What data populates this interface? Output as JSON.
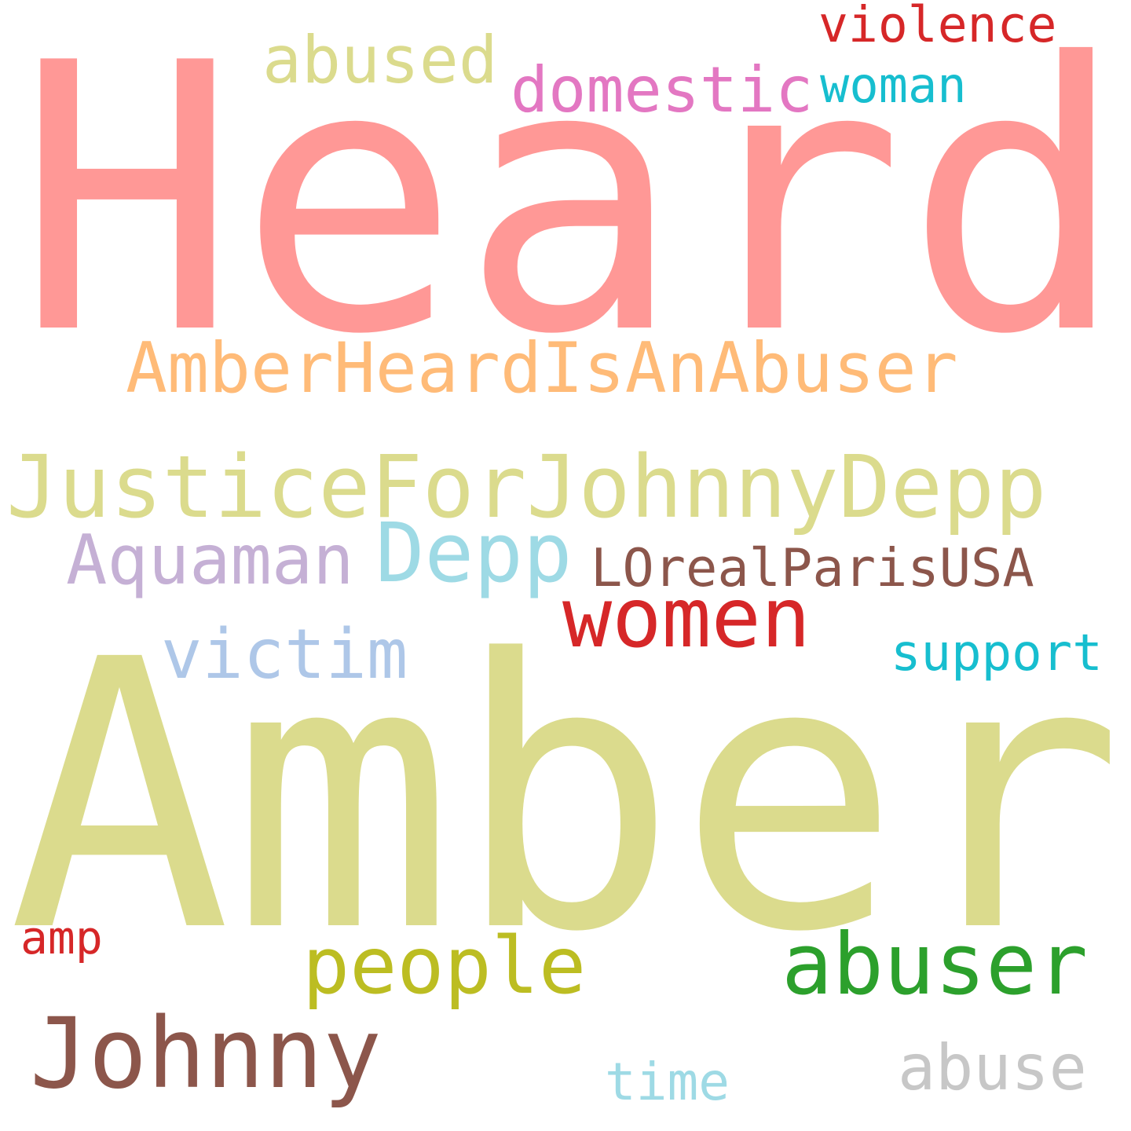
{
  "words": [
    {
      "key": "heard",
      "text": "Heard",
      "color": "#ff9896"
    },
    {
      "key": "amber",
      "text": "Amber",
      "color": "#dbdb8d"
    },
    {
      "key": "amberheard_is_an_abuser",
      "text": "AmberHeardIsAnAbuser",
      "color": "#ffbb78"
    },
    {
      "key": "justice",
      "text": "JusticeForJohnnyDepp",
      "color": "#dbdb8d"
    },
    {
      "key": "depp",
      "text": "Depp",
      "color": "#9edae5"
    },
    {
      "key": "aquaman",
      "text": "Aquaman",
      "color": "#c5b0d5"
    },
    {
      "key": "loreal",
      "text": "LOrealParisUSA",
      "color": "#8c564b"
    },
    {
      "key": "women",
      "text": "women",
      "color": "#d62728"
    },
    {
      "key": "victim",
      "text": "victim",
      "color": "#aec7e8"
    },
    {
      "key": "support",
      "text": "support",
      "color": "#17becf"
    },
    {
      "key": "abused",
      "text": "abused",
      "color": "#dbdb8d"
    },
    {
      "key": "domestic",
      "text": "domestic",
      "color": "#e377c2"
    },
    {
      "key": "violence",
      "text": "violence",
      "color": "#d62728"
    },
    {
      "key": "woman",
      "text": "woman",
      "color": "#17becf"
    },
    {
      "key": "people",
      "text": "people",
      "color": "#bcbd22"
    },
    {
      "key": "abuser",
      "text": "abuser",
      "color": "#2ca02c"
    },
    {
      "key": "amp",
      "text": "amp",
      "color": "#d62728"
    },
    {
      "key": "johnny",
      "text": "Johnny",
      "color": "#8c564b"
    },
    {
      "key": "time",
      "text": "time",
      "color": "#9edae5"
    },
    {
      "key": "abuse",
      "text": "abuse",
      "color": "#c7c7c7"
    }
  ]
}
